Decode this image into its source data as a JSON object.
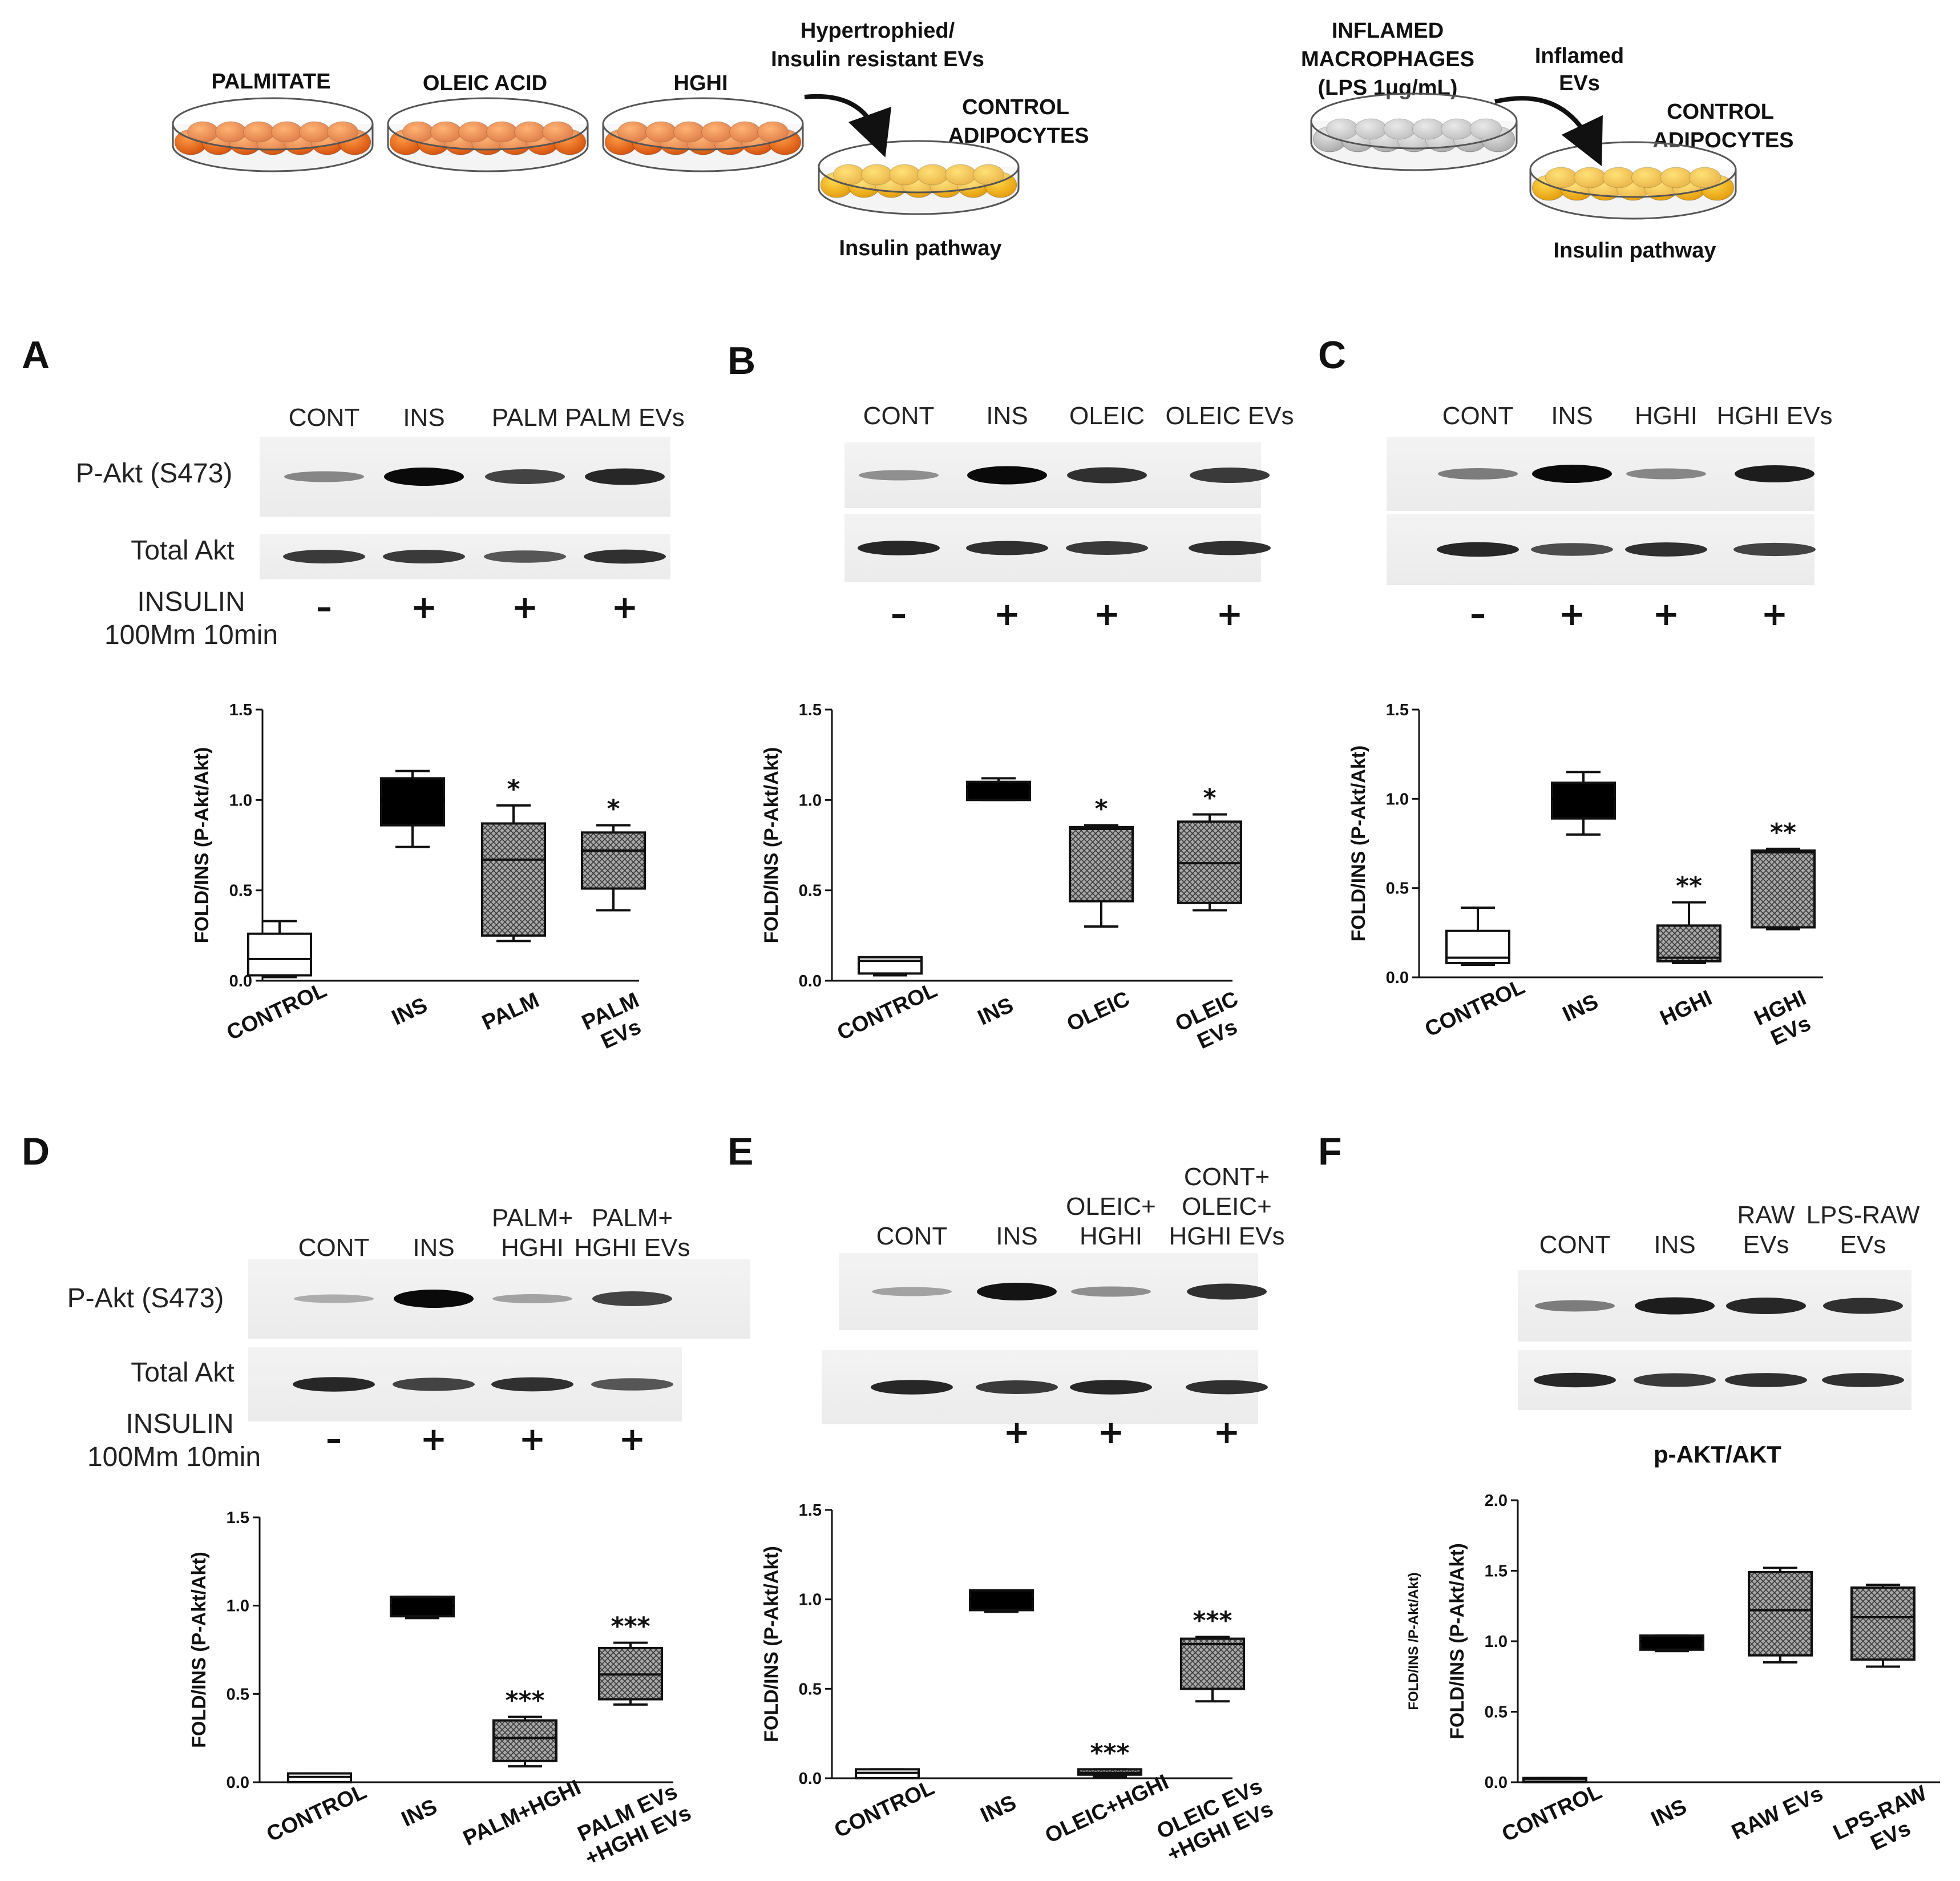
{
  "schematic": {
    "dish_palmitate": "PALMITATE",
    "dish_oleic": "OLEIC ACID",
    "dish_hghi": "HGHI",
    "arrow1_line1": "Hypertrophied/",
    "arrow1_line2": "Insulin resistant EVs",
    "target1_line1": "CONTROL",
    "target1_line2": "ADIPOCYTES",
    "pathway1": "Insulin pathway",
    "mac_line1": "INFLAMED",
    "mac_line2": "MACROPHAGES",
    "mac_line3": "(LPS 1μg/mL)",
    "arrow2_line1": "Inflamed",
    "arrow2_line2": "EVs",
    "target2_line1": "CONTROL",
    "target2_line2": "ADIPOCYTES",
    "pathway2": "Insulin pathway",
    "colors": {
      "orange_dish": "#e8661c",
      "yellow_dish": "#f4b51c",
      "grey_dish": "#bdbdbd"
    }
  },
  "panels": [
    {
      "letter": "A",
      "lanes": [
        [
          "CONT"
        ],
        [
          "INS"
        ],
        [
          "PALM"
        ],
        [
          "PALM EVs"
        ]
      ],
      "row_labels": {
        "p_akt": "P-Akt (S473)",
        "total_akt": "Total Akt",
        "insulin_line1": "INSULIN",
        "insulin_line2": "100Mm 10min"
      },
      "signs": [
        "–",
        "+",
        "+",
        "+"
      ]
    },
    {
      "letter": "B",
      "lanes": [
        [
          "CONT"
        ],
        [
          "INS"
        ],
        [
          "OLEIC"
        ],
        [
          "OLEIC EVs"
        ]
      ],
      "signs": [
        "–",
        "+",
        "+",
        "+"
      ]
    },
    {
      "letter": "C",
      "lanes": [
        [
          "CONT"
        ],
        [
          "INS"
        ],
        [
          "HGHI"
        ],
        [
          "HGHI EVs"
        ]
      ],
      "signs": [
        "–",
        "+",
        "+",
        "+"
      ]
    },
    {
      "letter": "D",
      "lanes": [
        [
          "CONT"
        ],
        [
          "INS"
        ],
        [
          "PALM+",
          "HGHI"
        ],
        [
          "PALM+",
          "HGHI EVs"
        ]
      ],
      "row_labels": {
        "p_akt": "P-Akt (S473)",
        "total_akt": "Total Akt",
        "insulin_line1": "INSULIN",
        "insulin_line2": "100Mm 10min"
      },
      "signs": [
        "–",
        "+",
        "+",
        "+"
      ]
    },
    {
      "letter": "E",
      "lanes": [
        [
          "CONT"
        ],
        [
          "INS"
        ],
        [
          "OLEIC+",
          "HGHI"
        ],
        [
          "CONT+",
          "OLEIC+",
          "HGHI EVs"
        ]
      ],
      "signs": [
        "",
        "+",
        "+",
        "+"
      ]
    },
    {
      "letter": "F",
      "lanes": [
        [
          "CONT"
        ],
        [
          "INS"
        ],
        [
          "RAW",
          "EVs"
        ],
        [
          "LPS-RAW",
          "EVs"
        ]
      ],
      "signs": []
    }
  ],
  "chart_data": [
    {
      "type": "box",
      "panel": "A",
      "title": "",
      "ylabel": "FOLD/INS (P-Akt/Akt)",
      "ylim": [
        0,
        1.5
      ],
      "yticks": [
        "0.0",
        "0.5",
        "1.0",
        "1.5"
      ],
      "categories": [
        [
          "CONTROL"
        ],
        [
          "INS"
        ],
        [
          "PALM"
        ],
        [
          "PALM",
          "EVs"
        ]
      ],
      "boxes": [
        {
          "min": 0.02,
          "q1": 0.03,
          "median": 0.12,
          "q3": 0.26,
          "max": 0.33,
          "fill": "white",
          "sig": ""
        },
        {
          "min": 0.74,
          "q1": 0.86,
          "median": 1.0,
          "q3": 1.12,
          "max": 1.16,
          "fill": "black",
          "sig": ""
        },
        {
          "min": 0.22,
          "q1": 0.25,
          "median": 0.67,
          "q3": 0.87,
          "max": 0.97,
          "fill": "hatch",
          "sig": "*"
        },
        {
          "min": 0.39,
          "q1": 0.51,
          "median": 0.72,
          "q3": 0.82,
          "max": 0.86,
          "fill": "hatch",
          "sig": "*"
        }
      ]
    },
    {
      "type": "box",
      "panel": "B",
      "title": "",
      "ylabel": "FOLD/INS (P-Akt/Akt)",
      "ylim": [
        0,
        1.5
      ],
      "yticks": [
        "0.0",
        "0.5",
        "1.0",
        "1.5"
      ],
      "categories": [
        [
          "CONTROL"
        ],
        [
          "INS"
        ],
        [
          "OLEIC"
        ],
        [
          "OLEIC",
          "EVs"
        ]
      ],
      "boxes": [
        {
          "min": 0.03,
          "q1": 0.04,
          "median": 0.11,
          "q3": 0.13,
          "max": 0.13,
          "fill": "white",
          "sig": ""
        },
        {
          "min": 1.0,
          "q1": 1.0,
          "median": 1.07,
          "q3": 1.1,
          "max": 1.12,
          "fill": "black",
          "sig": ""
        },
        {
          "min": 0.3,
          "q1": 0.44,
          "median": 0.84,
          "q3": 0.85,
          "max": 0.86,
          "fill": "hatch",
          "sig": "*"
        },
        {
          "min": 0.39,
          "q1": 0.43,
          "median": 0.65,
          "q3": 0.88,
          "max": 0.92,
          "fill": "hatch",
          "sig": "*"
        }
      ]
    },
    {
      "type": "box",
      "panel": "C",
      "title": "",
      "ylabel": "FOLD/INS (P-Akt/Akt)",
      "ylim": [
        0,
        1.5
      ],
      "yticks": [
        "0.0",
        "0.5",
        "1.0",
        "1.5"
      ],
      "categories": [
        [
          "CONTROL"
        ],
        [
          "INS"
        ],
        [
          "HGHI"
        ],
        [
          "HGHI",
          "EVs"
        ]
      ],
      "boxes": [
        {
          "min": 0.07,
          "q1": 0.08,
          "median": 0.11,
          "q3": 0.26,
          "max": 0.39,
          "fill": "white",
          "sig": ""
        },
        {
          "min": 0.8,
          "q1": 0.89,
          "median": 1.0,
          "q3": 1.09,
          "max": 1.15,
          "fill": "black",
          "sig": ""
        },
        {
          "min": 0.08,
          "q1": 0.09,
          "median": 0.11,
          "q3": 0.29,
          "max": 0.42,
          "fill": "hatch",
          "sig": "**"
        },
        {
          "min": 0.27,
          "q1": 0.28,
          "median": 0.7,
          "q3": 0.71,
          "max": 0.72,
          "fill": "hatch",
          "sig": "**"
        }
      ]
    },
    {
      "type": "box",
      "panel": "D",
      "title": "",
      "ylabel": "FOLD/INS (P-Akt/Akt)",
      "ylim": [
        0,
        1.5
      ],
      "yticks": [
        "0.0",
        "0.5",
        "1.0",
        "1.5"
      ],
      "categories": [
        [
          "CONTROL"
        ],
        [
          "INS"
        ],
        [
          "PALM+HGHI"
        ],
        [
          "PALM EVs",
          "+HGHI EVs"
        ]
      ],
      "boxes": [
        {
          "min": 0.0,
          "q1": 0.0,
          "median": 0.03,
          "q3": 0.05,
          "max": 0.05,
          "fill": "white",
          "sig": ""
        },
        {
          "min": 0.93,
          "q1": 0.94,
          "median": 1.0,
          "q3": 1.05,
          "max": 1.05,
          "fill": "black",
          "sig": ""
        },
        {
          "min": 0.09,
          "q1": 0.12,
          "median": 0.25,
          "q3": 0.35,
          "max": 0.37,
          "fill": "hatch",
          "sig": "***"
        },
        {
          "min": 0.44,
          "q1": 0.47,
          "median": 0.61,
          "q3": 0.76,
          "max": 0.79,
          "fill": "hatch",
          "sig": "***"
        }
      ]
    },
    {
      "type": "box",
      "panel": "E",
      "title": "",
      "ylabel": "FOLD/INS (P-Akt/Akt)",
      "ylim": [
        0,
        1.5
      ],
      "yticks": [
        "0.0",
        "0.5",
        "1.0",
        "1.5"
      ],
      "categories": [
        [
          "CONTROL"
        ],
        [
          "INS"
        ],
        [
          "OLEIC+HGHI"
        ],
        [
          "OLEIC EVs",
          "+HGHI EVs"
        ]
      ],
      "boxes": [
        {
          "min": 0.0,
          "q1": 0.0,
          "median": 0.03,
          "q3": 0.05,
          "max": 0.05,
          "fill": "white",
          "sig": ""
        },
        {
          "min": 0.93,
          "q1": 0.94,
          "median": 1.0,
          "q3": 1.05,
          "max": 1.05,
          "fill": "black",
          "sig": ""
        },
        {
          "min": 0.01,
          "q1": 0.02,
          "median": 0.03,
          "q3": 0.05,
          "max": 0.05,
          "fill": "hatch",
          "sig": "***"
        },
        {
          "min": 0.43,
          "q1": 0.5,
          "median": 0.75,
          "q3": 0.78,
          "max": 0.79,
          "fill": "hatch",
          "sig": "***"
        }
      ]
    },
    {
      "type": "box",
      "panel": "F",
      "title": "p-AKT/AKT",
      "ylabel": "FOLD/INS (P-Akt/Akt)",
      "ylabel_outer": "FOLD/INS /P-Akt/Akt)",
      "ylim": [
        0,
        2.0
      ],
      "yticks": [
        "0.0",
        "0.5",
        "1.0",
        "1.5",
        "2.0"
      ],
      "categories": [
        [
          "CONTROL"
        ],
        [
          "INS"
        ],
        [
          "RAW EVs"
        ],
        [
          "LPS-RAW",
          "EVs"
        ]
      ],
      "boxes": [
        {
          "min": 0.0,
          "q1": 0.0,
          "median": 0.02,
          "q3": 0.03,
          "max": 0.03,
          "fill": "white",
          "sig": ""
        },
        {
          "min": 0.93,
          "q1": 0.94,
          "median": 1.0,
          "q3": 1.04,
          "max": 1.04,
          "fill": "black",
          "sig": ""
        },
        {
          "min": 0.85,
          "q1": 0.9,
          "median": 1.22,
          "q3": 1.49,
          "max": 1.52,
          "fill": "hatch",
          "sig": ""
        },
        {
          "min": 0.82,
          "q1": 0.87,
          "median": 1.17,
          "q3": 1.38,
          "max": 1.4,
          "fill": "hatch",
          "sig": ""
        }
      ]
    }
  ]
}
